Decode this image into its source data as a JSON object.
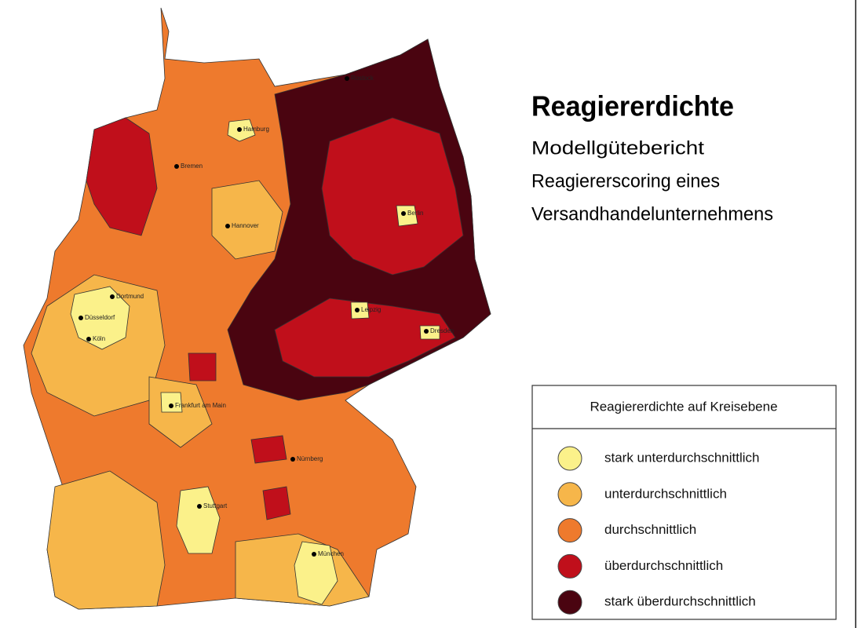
{
  "title": "Reagiererdichte",
  "subtitle": [
    "Modellgütebericht",
    "Reagiererscoring eines",
    "Versandhandelunternehmens"
  ],
  "legend": {
    "title": "Reagiererdichte auf Kreisebene",
    "items": [
      {
        "label": "stark unterdurchschnittlich",
        "color": "#fbf18a"
      },
      {
        "label": "unterdurchschnittlich",
        "color": "#f6b64a"
      },
      {
        "label": "durchschnittlich",
        "color": "#ee7a2d"
      },
      {
        "label": "überdurchschnittlich",
        "color": "#c00f1b"
      },
      {
        "label": "stark überdurchschnittlich",
        "color": "#4a0410"
      }
    ]
  },
  "cities": [
    "Rostock",
    "Hamburg",
    "Bremen",
    "Hannover",
    "Berlin",
    "Dortmund",
    "Düsseldorf",
    "Köln",
    "Leipzig",
    "Dresden",
    "Frankfurt am Main",
    "Nürnberg",
    "Stuttgart",
    "München"
  ]
}
